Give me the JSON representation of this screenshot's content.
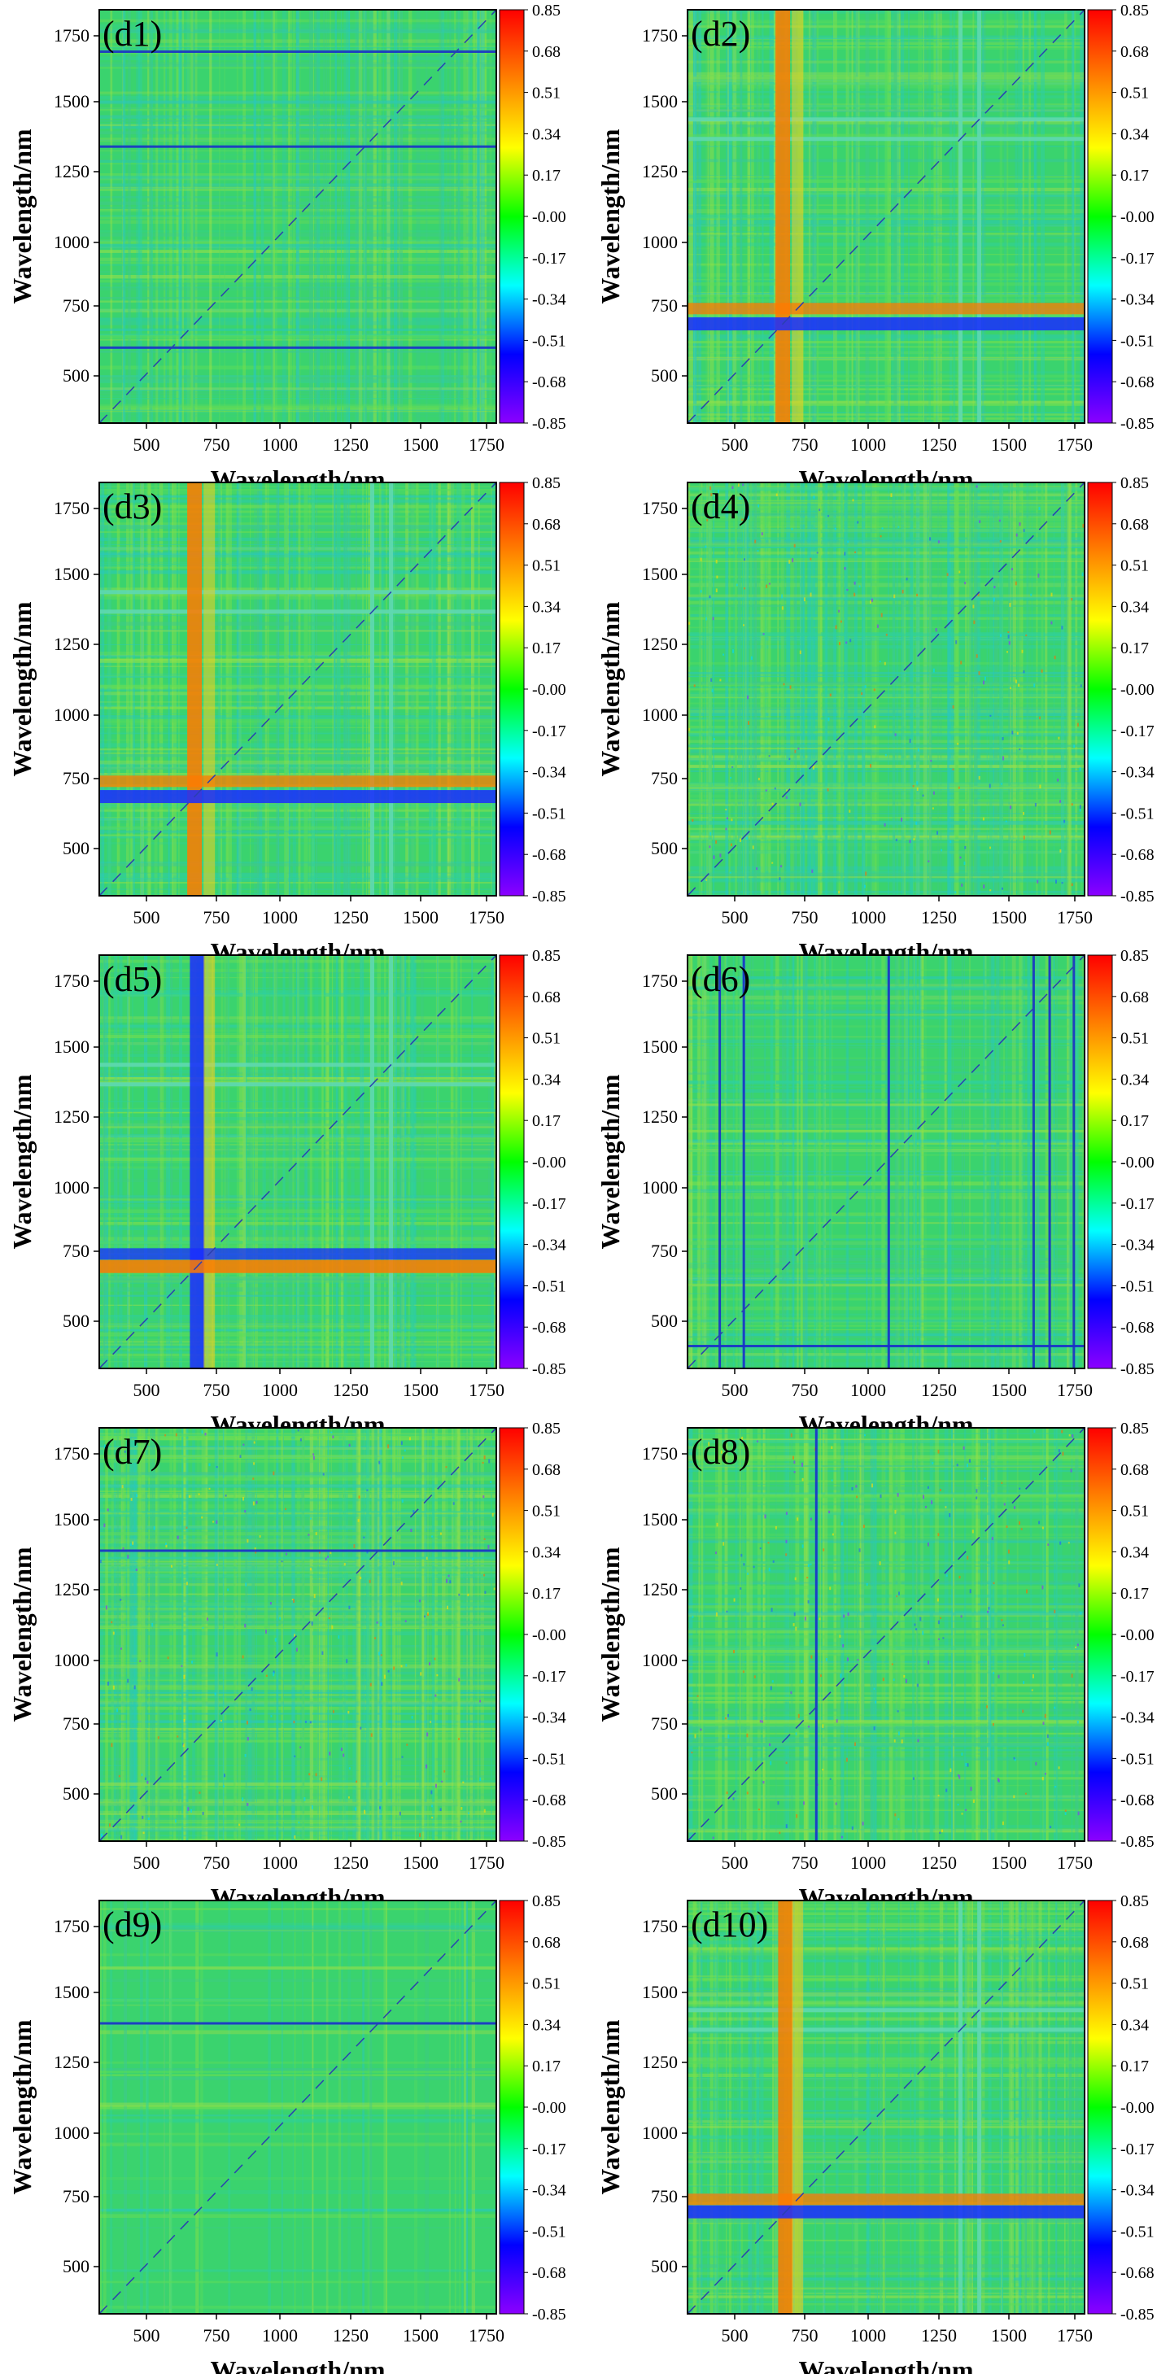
{
  "figure": {
    "background": "#ffffff",
    "background_field_color": "#3ad36e"
  },
  "chart_data": [
    {
      "type": "heatmap",
      "panel_label": "(d1)",
      "xlabel": "Wavelength/nm",
      "ylabel": "Wavelength/nm",
      "xlim": [
        350,
        1830
      ],
      "ylim": [
        350,
        1830
      ],
      "xticks": [
        500,
        750,
        1000,
        1250,
        1500,
        1750
      ],
      "yticks": [
        500,
        750,
        1000,
        1250,
        1500,
        1750
      ],
      "colorbar": {
        "ticks": [
          "0.85",
          "0.68",
          "0.51",
          "0.34",
          "0.17",
          "-0.00",
          "-0.17",
          "-0.34",
          "-0.51",
          "-0.68",
          "-0.85"
        ],
        "range": [
          -0.85,
          0.85
        ],
        "colors": [
          "#ff0000",
          "#ff8000",
          "#ffff00",
          "#00ff00",
          "#00ffff",
          "#0000ff",
          "#8b00ff"
        ]
      },
      "strong_bands_nm": [],
      "band_sign": "negative",
      "horizontal_lines_nm": [
        620,
        1340,
        1680
      ],
      "vertical_lines_nm": [],
      "region_breaks_nm": []
    },
    {
      "type": "heatmap",
      "panel_label": "(d2)",
      "xlabel": "Wavelength/nm",
      "ylabel": "Wavelength/nm",
      "xlim": [
        350,
        1830
      ],
      "ylim": [
        350,
        1830
      ],
      "xticks": [
        500,
        750,
        1000,
        1250,
        1500,
        1750
      ],
      "yticks": [
        500,
        750,
        1000,
        1250,
        1500,
        1750
      ],
      "colorbar": {
        "ticks": [
          "0.85",
          "0.68",
          "0.51",
          "0.34",
          "0.17",
          "-0.00",
          "-0.17",
          "-0.34",
          "-0.51",
          "-0.68",
          "-0.85"
        ],
        "range": [
          -0.85,
          0.85
        ],
        "colors": [
          "#ff0000",
          "#ff8000",
          "#ffff00",
          "#00ff00",
          "#00ffff",
          "#0000ff",
          "#8b00ff"
        ]
      },
      "strong_bands_nm": [
        705,
        760
      ],
      "band_sign": "mixed",
      "horizontal_lines_nm": [],
      "vertical_lines_nm": [],
      "region_breaks_nm": [
        1360,
        1430
      ]
    },
    {
      "type": "heatmap",
      "panel_label": "(d3)",
      "xlabel": "Wavelength/nm",
      "ylabel": "Wavelength/nm",
      "xlim": [
        350,
        1830
      ],
      "ylim": [
        350,
        1830
      ],
      "xticks": [
        500,
        750,
        1000,
        1250,
        1500,
        1750
      ],
      "yticks": [
        500,
        750,
        1000,
        1250,
        1500,
        1750
      ],
      "colorbar": {
        "ticks": [
          "0.85",
          "0.68",
          "0.51",
          "0.34",
          "0.17",
          "-0.00",
          "-0.17",
          "-0.34",
          "-0.51",
          "-0.68",
          "-0.85"
        ],
        "range": [
          -0.85,
          0.85
        ],
        "colors": [
          "#ff0000",
          "#ff8000",
          "#ffff00",
          "#00ff00",
          "#00ffff",
          "#0000ff",
          "#8b00ff"
        ]
      },
      "strong_bands_nm": [
        705,
        760
      ],
      "band_sign": "mixed",
      "horizontal_lines_nm": [],
      "vertical_lines_nm": [],
      "region_breaks_nm": [
        1360,
        1430
      ]
    },
    {
      "type": "heatmap",
      "panel_label": "(d4)",
      "xlabel": "Wavelength/nm",
      "ylabel": "Wavelength/nm",
      "xlim": [
        350,
        1830
      ],
      "ylim": [
        350,
        1830
      ],
      "xticks": [
        500,
        750,
        1000,
        1250,
        1500,
        1750
      ],
      "yticks": [
        500,
        750,
        1000,
        1250,
        1500,
        1750
      ],
      "colorbar": {
        "ticks": [
          "0.85",
          "0.68",
          "0.51",
          "0.34",
          "0.17",
          "-0.00",
          "-0.17",
          "-0.34",
          "-0.51",
          "-0.68",
          "-0.85"
        ],
        "range": [
          -0.85,
          0.85
        ],
        "colors": [
          "#ff0000",
          "#ff8000",
          "#ffff00",
          "#00ff00",
          "#00ffff",
          "#0000ff",
          "#8b00ff"
        ]
      },
      "strong_bands_nm": [],
      "band_sign": "noise",
      "horizontal_lines_nm": [],
      "vertical_lines_nm": [],
      "region_breaks_nm": []
    },
    {
      "type": "heatmap",
      "panel_label": "(d5)",
      "xlabel": "Wavelength/nm",
      "ylabel": "Wavelength/nm",
      "xlim": [
        350,
        1830
      ],
      "ylim": [
        350,
        1830
      ],
      "xticks": [
        500,
        750,
        1000,
        1250,
        1500,
        1750
      ],
      "yticks": [
        500,
        750,
        1000,
        1250,
        1500,
        1750
      ],
      "colorbar": {
        "ticks": [
          "0.85",
          "0.68",
          "0.51",
          "0.34",
          "0.17",
          "-0.00",
          "-0.17",
          "-0.34",
          "-0.51",
          "-0.68",
          "-0.85"
        ],
        "range": [
          -0.85,
          0.85
        ],
        "colors": [
          "#ff0000",
          "#ff8000",
          "#ffff00",
          "#00ff00",
          "#00ffff",
          "#0000ff",
          "#8b00ff"
        ]
      },
      "strong_bands_nm": [
        715,
        760
      ],
      "band_sign": "mixed-inverted",
      "horizontal_lines_nm": [],
      "vertical_lines_nm": [],
      "region_breaks_nm": [
        1360,
        1430
      ]
    },
    {
      "type": "heatmap",
      "panel_label": "(d6)",
      "xlabel": "Wavelength/nm",
      "ylabel": "Wavelength/nm",
      "xlim": [
        350,
        1830
      ],
      "ylim": [
        350,
        1830
      ],
      "xticks": [
        500,
        750,
        1000,
        1250,
        1500,
        1750
      ],
      "yticks": [
        500,
        750,
        1000,
        1250,
        1500,
        1750
      ],
      "colorbar": {
        "ticks": [
          "0.85",
          "0.68",
          "0.51",
          "0.34",
          "0.17",
          "-0.00",
          "-0.17",
          "-0.34",
          "-0.51",
          "-0.68",
          "-0.85"
        ],
        "range": [
          -0.85,
          0.85
        ],
        "colors": [
          "#ff0000",
          "#ff8000",
          "#ffff00",
          "#00ff00",
          "#00ffff",
          "#0000ff",
          "#8b00ff"
        ]
      },
      "strong_bands_nm": [],
      "band_sign": "vertical",
      "horizontal_lines_nm": [
        430
      ],
      "vertical_lines_nm": [
        470,
        560,
        1100,
        1640,
        1700,
        1790
      ],
      "region_breaks_nm": []
    },
    {
      "type": "heatmap",
      "panel_label": "(d7)",
      "xlabel": "Wavelength/nm",
      "ylabel": "Wavelength/nm",
      "xlim": [
        350,
        1830
      ],
      "ylim": [
        350,
        1830
      ],
      "xticks": [
        500,
        750,
        1000,
        1250,
        1500,
        1750
      ],
      "yticks": [
        500,
        750,
        1000,
        1250,
        1500,
        1750
      ],
      "colorbar": {
        "ticks": [
          "0.85",
          "0.68",
          "0.51",
          "0.34",
          "0.17",
          "-0.00",
          "-0.17",
          "-0.34",
          "-0.51",
          "-0.68",
          "-0.85"
        ],
        "range": [
          -0.85,
          0.85
        ],
        "colors": [
          "#ff0000",
          "#ff8000",
          "#ffff00",
          "#00ff00",
          "#00ffff",
          "#0000ff",
          "#8b00ff"
        ]
      },
      "strong_bands_nm": [],
      "band_sign": "noise",
      "horizontal_lines_nm": [
        1390
      ],
      "vertical_lines_nm": [],
      "region_breaks_nm": []
    },
    {
      "type": "heatmap",
      "panel_label": "(d8)",
      "xlabel": "Wavelength/nm",
      "ylabel": "Wavelength/nm",
      "xlim": [
        350,
        1830
      ],
      "ylim": [
        350,
        1830
      ],
      "xticks": [
        500,
        750,
        1000,
        1250,
        1500,
        1750
      ],
      "yticks": [
        500,
        750,
        1000,
        1250,
        1500,
        1750
      ],
      "colorbar": {
        "ticks": [
          "0.85",
          "0.68",
          "0.51",
          "0.34",
          "0.17",
          "-0.00",
          "-0.17",
          "-0.34",
          "-0.51",
          "-0.68",
          "-0.85"
        ],
        "range": [
          -0.85,
          0.85
        ],
        "colors": [
          "#ff0000",
          "#ff8000",
          "#ffff00",
          "#00ff00",
          "#00ffff",
          "#0000ff",
          "#8b00ff"
        ]
      },
      "strong_bands_nm": [],
      "band_sign": "grid",
      "horizontal_lines_nm": [],
      "vertical_lines_nm": [
        830
      ],
      "region_breaks_nm": []
    },
    {
      "type": "heatmap",
      "panel_label": "(d9)",
      "xlabel": "Wavelength/nm",
      "ylabel": "Wavelength/nm",
      "xlim": [
        350,
        1830
      ],
      "ylim": [
        350,
        1830
      ],
      "xticks": [
        500,
        750,
        1000,
        1250,
        1500,
        1750
      ],
      "yticks": [
        500,
        750,
        1000,
        1250,
        1500,
        1750
      ],
      "colorbar": {
        "ticks": [
          "0.85",
          "0.68",
          "0.51",
          "0.34",
          "0.17",
          "-0.00",
          "-0.17",
          "-0.34",
          "-0.51",
          "-0.68",
          "-0.85"
        ],
        "range": [
          -0.85,
          0.85
        ],
        "colors": [
          "#ff0000",
          "#ff8000",
          "#ffff00",
          "#00ff00",
          "#00ffff",
          "#0000ff",
          "#8b00ff"
        ]
      },
      "strong_bands_nm": [],
      "band_sign": "smooth",
      "horizontal_lines_nm": [
        1390
      ],
      "vertical_lines_nm": [],
      "region_breaks_nm": []
    },
    {
      "type": "heatmap",
      "panel_label": "(d10)",
      "xlabel": "Wavelength/nm",
      "ylabel": "Wavelength/nm",
      "xlim": [
        350,
        1830
      ],
      "ylim": [
        350,
        1830
      ],
      "xticks": [
        500,
        750,
        1000,
        1250,
        1500,
        1750
      ],
      "yticks": [
        500,
        750,
        1000,
        1250,
        1500,
        1750
      ],
      "colorbar": {
        "ticks": [
          "0.85",
          "0.68",
          "0.51",
          "0.34",
          "0.17",
          "-0.00",
          "-0.17",
          "-0.34",
          "-0.51",
          "-0.68",
          "-0.85"
        ],
        "range": [
          -0.85,
          0.85
        ],
        "colors": [
          "#ff0000",
          "#ff8000",
          "#ffff00",
          "#00ff00",
          "#00ffff",
          "#0000ff",
          "#8b00ff"
        ]
      },
      "strong_bands_nm": [
        715,
        760
      ],
      "band_sign": "mixed",
      "horizontal_lines_nm": [],
      "vertical_lines_nm": [],
      "region_breaks_nm": [
        1360,
        1430
      ]
    }
  ]
}
